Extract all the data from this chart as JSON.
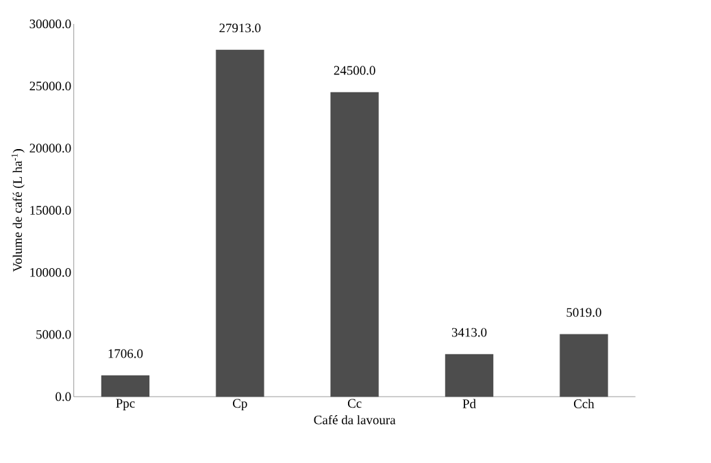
{
  "chart_data": {
    "type": "bar",
    "xlabel": "Café da lavoura",
    "ylabel": "Volume de café (L ha$^{-1}$)",
    "categories": [
      "Ppc",
      "Cp",
      "Cc",
      "Pd",
      "Cch"
    ],
    "values": [
      1706,
      27913,
      24500,
      3413,
      5019
    ],
    "value_labels": [
      "1706.0",
      "27913.0",
      "24500.0",
      "3413.0",
      "5019.0"
    ],
    "color": "#4d4d4d",
    "ylim": [
      0,
      30000
    ],
    "yticks": [
      {
        "value": 0,
        "label": "0.0"
      },
      {
        "value": 5000,
        "label": "5000.0"
      },
      {
        "value": 10000,
        "label": "10000.0"
      },
      {
        "value": 15000,
        "label": "15000.0"
      },
      {
        "value": 20000,
        "label": "20000.0"
      },
      {
        "value": 25000,
        "label": "25000.0"
      },
      {
        "value": 30000,
        "label": "30000.0"
      }
    ],
    "grid": false
  }
}
